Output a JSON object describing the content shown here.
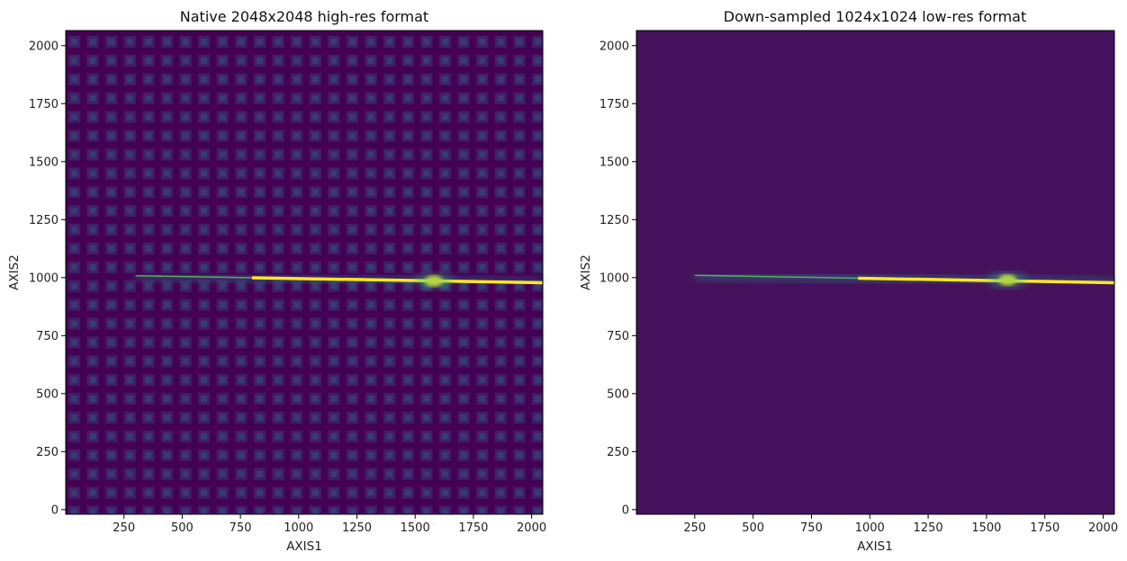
{
  "chart_data": [
    {
      "type": "heatmap",
      "title": "Native 2048x2048 high-res format",
      "xlabel": "AXIS1",
      "ylabel": "AXIS2",
      "xlim": [
        0,
        2048
      ],
      "ylim": [
        -20,
        2065
      ],
      "xticks": [
        250,
        500,
        750,
        1000,
        1250,
        1500,
        1750,
        2000
      ],
      "yticks": [
        0,
        250,
        500,
        750,
        1000,
        1250,
        1500,
        1750,
        2000
      ],
      "colormap": "viridis",
      "background_color": "#440154",
      "highlight_color": "#fde725",
      "trace": {
        "x_start": 300,
        "x_end": 2048,
        "y_start": 1008,
        "y_end": 978,
        "bright_from_x": 800,
        "blob_x": 1580,
        "blob_y": 985
      },
      "pattern": "grid of bright squares"
    },
    {
      "type": "heatmap",
      "title": "Down-sampled 1024x1024 low-res format",
      "xlabel": "AXIS1",
      "ylabel": "AXIS2",
      "xlim": [
        0,
        2048
      ],
      "ylim": [
        -20,
        2065
      ],
      "xticks": [
        250,
        500,
        750,
        1000,
        1250,
        1500,
        1750,
        2000
      ],
      "yticks": [
        0,
        250,
        500,
        750,
        1000,
        1250,
        1500,
        1750,
        2000
      ],
      "colormap": "viridis",
      "background_color": "#45115c",
      "highlight_color": "#fde725",
      "trace": {
        "x_start": 250,
        "x_end": 2048,
        "y_start": 1010,
        "y_end": 978,
        "bright_from_x": 950,
        "blob_x": 1590,
        "blob_y": 990
      },
      "pattern": "uniform noise"
    }
  ]
}
